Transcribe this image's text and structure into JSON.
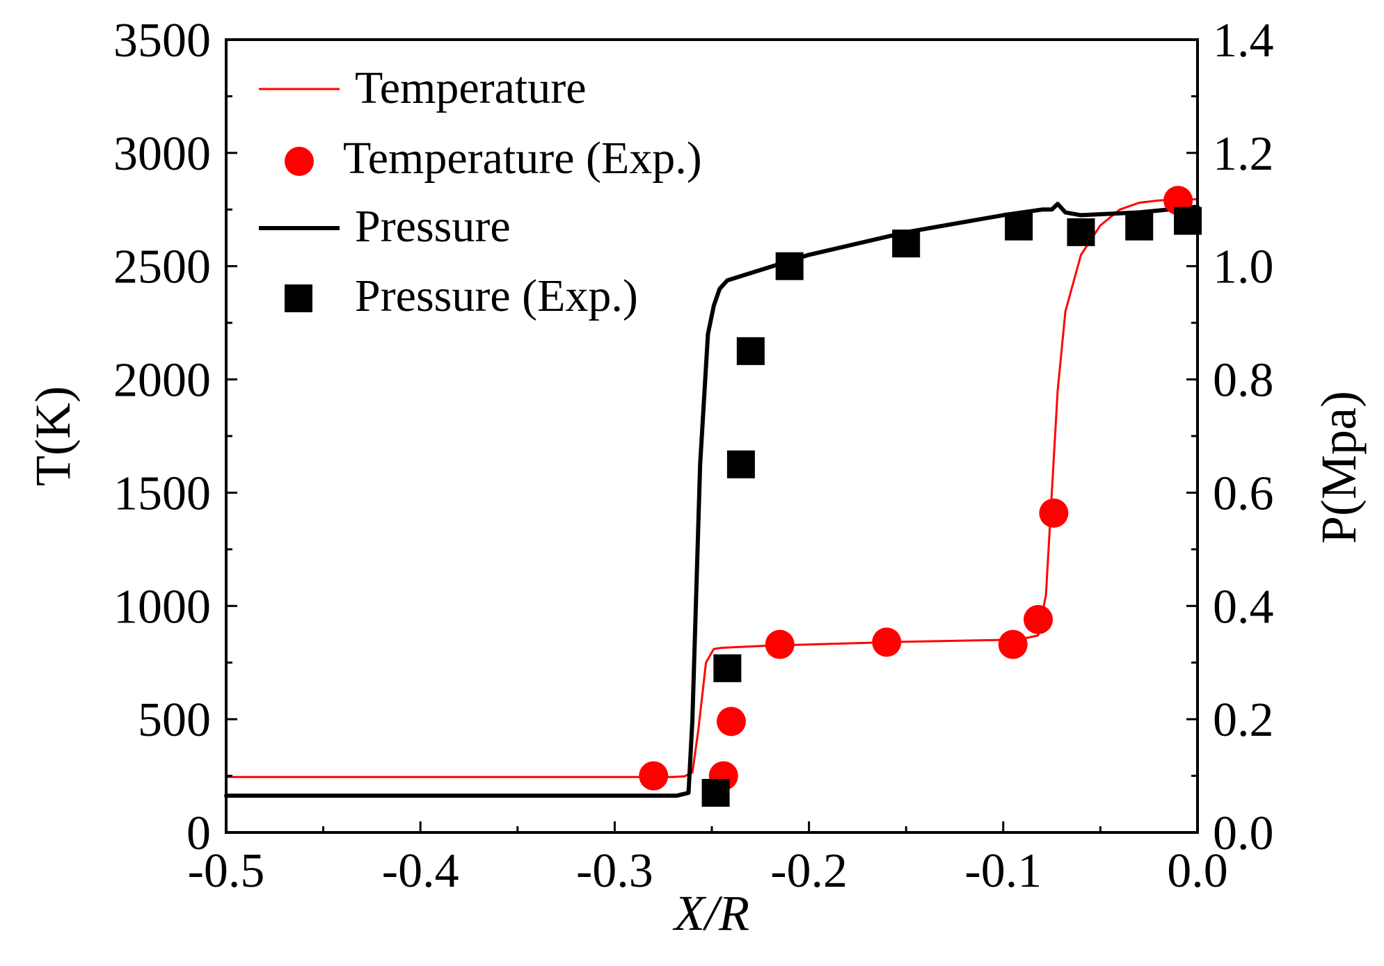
{
  "chart_data": {
    "type": "line",
    "title": "",
    "xlabel": "X/R",
    "ylabel_left": "T(K)",
    "ylabel_right": "P(Mpa)",
    "xlim": [
      -0.5,
      0.0
    ],
    "ylim_left": [
      0,
      3500
    ],
    "ylim_right": [
      0.0,
      1.4
    ],
    "x_ticks": [
      "-0.5",
      "-0.4",
      "-0.3",
      "-0.2",
      "-0.1",
      "0.0"
    ],
    "y_left_ticks": [
      "0",
      "500",
      "1000",
      "1500",
      "2000",
      "2500",
      "3000",
      "3500"
    ],
    "y_right_ticks": [
      "0.0",
      "0.2",
      "0.4",
      "0.6",
      "0.8",
      "1.0",
      "1.2",
      "1.4"
    ],
    "grid": false,
    "legend_position": "top-left",
    "series": [
      {
        "name": "Temperature",
        "kind": "line",
        "axis": "left",
        "color": "#ff0000",
        "x": [
          -0.5,
          -0.3,
          -0.27,
          -0.264,
          -0.26,
          -0.257,
          -0.253,
          -0.249,
          -0.245,
          -0.22,
          -0.15,
          -0.1,
          -0.09,
          -0.082,
          -0.078,
          -0.075,
          -0.072,
          -0.068,
          -0.06,
          -0.05,
          -0.04,
          -0.03,
          -0.02,
          -0.01,
          0.0
        ],
        "y": [
          245,
          245,
          245,
          248,
          265,
          450,
          750,
          810,
          815,
          825,
          842,
          850,
          855,
          870,
          1050,
          1500,
          1950,
          2300,
          2550,
          2680,
          2750,
          2780,
          2790,
          2795,
          2795
        ]
      },
      {
        "name": "Temperature (Exp.)",
        "kind": "scatter",
        "axis": "left",
        "color": "#ff0000",
        "marker": "circle",
        "x": [
          -0.28,
          -0.244,
          -0.24,
          -0.215,
          -0.16,
          -0.095,
          -0.082,
          -0.074,
          -0.01
        ],
        "y": [
          250,
          250,
          490,
          830,
          840,
          830,
          940,
          1410,
          2790
        ]
      },
      {
        "name": "Pressure",
        "kind": "line",
        "axis": "right",
        "color": "#000000",
        "x": [
          -0.5,
          -0.268,
          -0.262,
          -0.26,
          -0.256,
          -0.252,
          -0.249,
          -0.246,
          -0.242,
          -0.2,
          -0.15,
          -0.1,
          -0.08,
          -0.075,
          -0.072,
          -0.068,
          -0.06,
          -0.03,
          0.0
        ],
        "y": [
          0.065,
          0.065,
          0.07,
          0.2,
          0.65,
          0.88,
          0.93,
          0.96,
          0.975,
          1.02,
          1.06,
          1.09,
          1.1,
          1.1,
          1.11,
          1.095,
          1.09,
          1.095,
          1.105
        ]
      },
      {
        "name": "Pressure (Exp.)",
        "kind": "scatter",
        "axis": "right",
        "color": "#000000",
        "marker": "square",
        "x": [
          -0.248,
          -0.242,
          -0.235,
          -0.23,
          -0.21,
          -0.15,
          -0.092,
          -0.06,
          -0.03,
          -0.005
        ],
        "y": [
          0.07,
          0.29,
          0.65,
          0.85,
          1.0,
          1.04,
          1.07,
          1.06,
          1.07,
          1.08
        ]
      }
    ]
  }
}
